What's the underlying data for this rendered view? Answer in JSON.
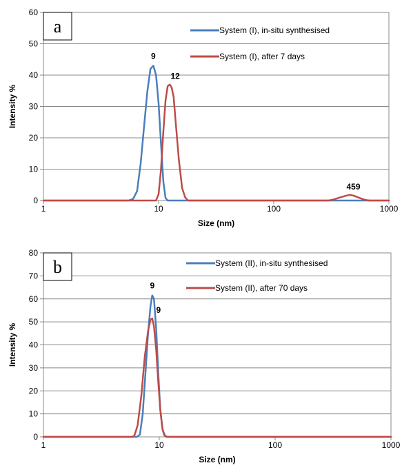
{
  "chart_data": [
    {
      "type": "line",
      "panel_label": "a",
      "xlabel": "Size (nm)",
      "ylabel": "Intensity %",
      "x_scale": "log",
      "xlim": [
        1,
        1000
      ],
      "ylim": [
        0,
        60
      ],
      "x_ticks": [
        "1",
        "10",
        "100",
        "1000"
      ],
      "y_ticks": [
        "0",
        "10",
        "20",
        "30",
        "40",
        "50",
        "60"
      ],
      "grid": true,
      "legend_position": "top-right",
      "series": [
        {
          "name": "System (I), in-situ synthesised",
          "color": "#4a7ebb",
          "points": [
            [
              1,
              0
            ],
            [
              5.5,
              0
            ],
            [
              6.0,
              0.5
            ],
            [
              6.5,
              3
            ],
            [
              7.0,
              12
            ],
            [
              7.5,
              24
            ],
            [
              8.0,
              35
            ],
            [
              8.5,
              42
            ],
            [
              9.0,
              43
            ],
            [
              9.5,
              40
            ],
            [
              10,
              31
            ],
            [
              10.5,
              18
            ],
            [
              11,
              6
            ],
            [
              11.5,
              0.8
            ],
            [
              12,
              0
            ],
            [
              1000,
              0
            ]
          ]
        },
        {
          "name": "System (I), after 7 days",
          "color": "#be4b48",
          "points": [
            [
              1,
              0
            ],
            [
              9.5,
              0
            ],
            [
              10,
              2
            ],
            [
              10.5,
              10
            ],
            [
              11,
              22
            ],
            [
              11.5,
              32
            ],
            [
              12,
              36.5
            ],
            [
              12.5,
              37
            ],
            [
              13,
              36
            ],
            [
              13.5,
              33
            ],
            [
              14,
              26
            ],
            [
              15,
              13
            ],
            [
              16,
              4
            ],
            [
              17,
              1
            ],
            [
              18,
              0
            ],
            [
              300,
              0
            ],
            [
              330,
              0.3
            ],
            [
              370,
              0.9
            ],
            [
              420,
              1.5
            ],
            [
              459,
              1.8
            ],
            [
              500,
              1.5
            ],
            [
              560,
              0.8
            ],
            [
              620,
              0.2
            ],
            [
              680,
              0
            ],
            [
              1000,
              0
            ]
          ]
        }
      ],
      "annotations": [
        {
          "text": "9",
          "x": 9.0,
          "y": 43
        },
        {
          "text": "12",
          "x": 12.5,
          "y": 37
        },
        {
          "text": "459",
          "x": 459,
          "y": 1.8
        }
      ]
    },
    {
      "type": "line",
      "panel_label": "b",
      "xlabel": "Size (nm)",
      "ylabel": "Intensity %",
      "x_scale": "log",
      "xlim": [
        1,
        1000
      ],
      "ylim": [
        0,
        80
      ],
      "x_ticks": [
        "1",
        "10",
        "100",
        "1000"
      ],
      "y_ticks": [
        "0",
        "10",
        "20",
        "30",
        "40",
        "50",
        "60",
        "70",
        "80"
      ],
      "grid": true,
      "legend_position": "top-right",
      "series": [
        {
          "name": "System (II), in-situ synthesised",
          "color": "#4a7ebb",
          "points": [
            [
              1,
              0
            ],
            [
              6.4,
              0
            ],
            [
              6.8,
              1
            ],
            [
              7.2,
              10
            ],
            [
              7.6,
              28
            ],
            [
              8.0,
              45
            ],
            [
              8.4,
              57
            ],
            [
              8.7,
              61.5
            ],
            [
              9.0,
              60
            ],
            [
              9.4,
              47
            ],
            [
              9.8,
              28
            ],
            [
              10.2,
              12
            ],
            [
              10.7,
              3
            ],
            [
              11.2,
              0.5
            ],
            [
              11.8,
              0
            ],
            [
              1000,
              0
            ]
          ]
        },
        {
          "name": "System (II), after 70 days",
          "color": "#be4b48",
          "points": [
            [
              1,
              0
            ],
            [
              5.8,
              0
            ],
            [
              6.1,
              0.5
            ],
            [
              6.5,
              5
            ],
            [
              7.0,
              18
            ],
            [
              7.5,
              35
            ],
            [
              8.0,
              46
            ],
            [
              8.4,
              51
            ],
            [
              8.7,
              51.5
            ],
            [
              9.0,
              48
            ],
            [
              9.4,
              38
            ],
            [
              9.8,
              24
            ],
            [
              10.2,
              12
            ],
            [
              10.6,
              4
            ],
            [
              11.0,
              0.8
            ],
            [
              11.5,
              0
            ],
            [
              1000,
              0
            ]
          ]
        }
      ],
      "annotations": [
        {
          "text": "9",
          "x": 8.7,
          "y": 61.5
        },
        {
          "text": "9",
          "x": 8.7,
          "y": 51.5
        }
      ]
    }
  ]
}
